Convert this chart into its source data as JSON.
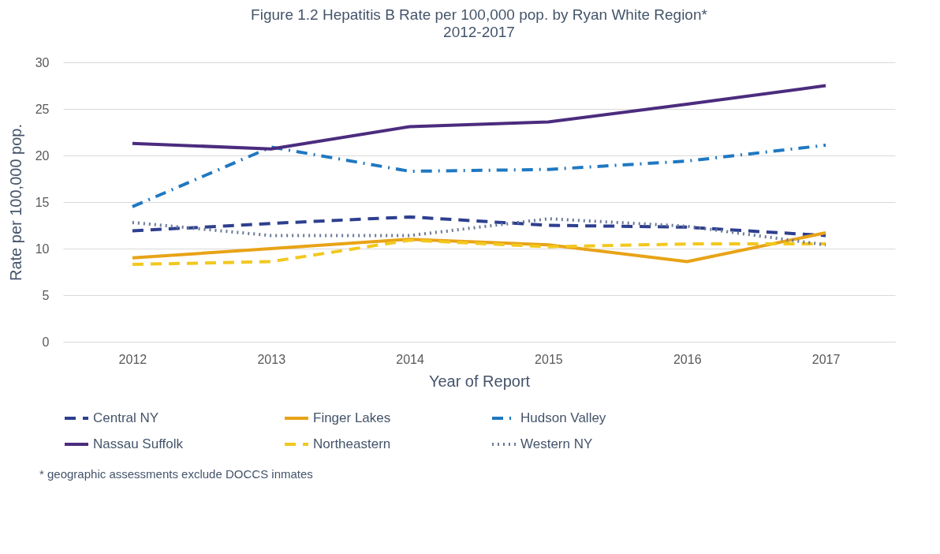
{
  "chart_data": {
    "type": "line",
    "title": "Figure 1.2 Hepatitis B Rate per 100,000 pop. by Ryan White Region*",
    "subtitle": "2012-2017",
    "xlabel": "Year of Report",
    "ylabel": "Rate per 100,000 pop.",
    "categories": [
      "2012",
      "2013",
      "2014",
      "2015",
      "2016",
      "2017"
    ],
    "series": [
      {
        "name": "Central NY",
        "color": "#2e3f8f",
        "line_style": "dashed",
        "values": [
          11.9,
          12.7,
          13.4,
          12.5,
          12.3,
          11.4
        ]
      },
      {
        "name": "Finger Lakes",
        "color": "#e8a317",
        "line_style": "solid",
        "values": [
          9.0,
          10.0,
          11.0,
          10.4,
          8.6,
          11.7
        ]
      },
      {
        "name": "Hudson Valley",
        "color": "#1f78c1",
        "line_style": "dashdot",
        "values": [
          14.5,
          20.9,
          18.3,
          18.5,
          19.4,
          21.1
        ]
      },
      {
        "name": "Nassau Suffolk",
        "color": "#4b2c7e",
        "line_style": "solid",
        "values": [
          21.3,
          20.7,
          23.1,
          23.6,
          25.5,
          27.5
        ]
      },
      {
        "name": "Northeastern",
        "color": "#f2c81e",
        "line_style": "dashed",
        "values": [
          8.3,
          8.6,
          10.9,
          10.2,
          10.5,
          10.5
        ]
      },
      {
        "name": "Western NY",
        "color": "#6b7a99",
        "line_style": "dotted",
        "values": [
          12.8,
          11.4,
          11.4,
          13.2,
          12.4,
          10.4
        ]
      }
    ],
    "ylim": [
      0,
      30
    ],
    "yticks": [
      0,
      5,
      10,
      15,
      20,
      25,
      30
    ],
    "grid": "y",
    "legend": "bottom",
    "marker": "none",
    "annotations": [
      "* geographic assessments exclude DOCCS inmates"
    ]
  }
}
